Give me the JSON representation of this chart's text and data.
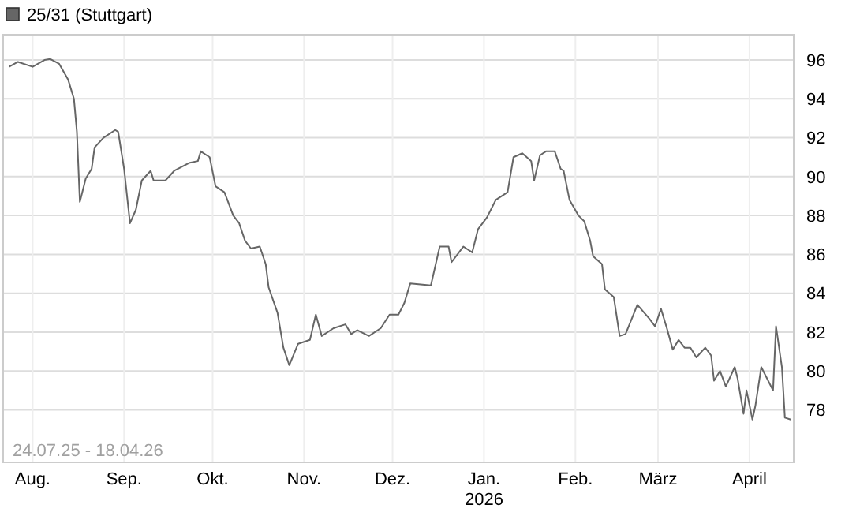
{
  "chart_data": {
    "type": "line",
    "x": [
      "2025-07-24",
      "2025-07-27",
      "2025-08-01",
      "2025-08-05",
      "2025-08-07",
      "2025-08-10",
      "2025-08-13",
      "2025-08-15",
      "2025-08-16",
      "2025-08-17",
      "2025-08-19",
      "2025-08-21",
      "2025-08-22",
      "2025-08-25",
      "2025-08-29",
      "2025-08-30",
      "2025-09-01",
      "2025-09-03",
      "2025-09-05",
      "2025-09-07",
      "2025-09-10",
      "2025-09-11",
      "2025-09-15",
      "2025-09-18",
      "2025-09-23",
      "2025-09-26",
      "2025-09-27",
      "2025-09-30",
      "2025-10-02",
      "2025-10-05",
      "2025-10-08",
      "2025-10-10",
      "2025-10-12",
      "2025-10-14",
      "2025-10-17",
      "2025-10-19",
      "2025-10-20",
      "2025-10-23",
      "2025-10-25",
      "2025-10-27",
      "2025-10-30",
      "2025-11-03",
      "2025-11-05",
      "2025-11-07",
      "2025-11-11",
      "2025-11-15",
      "2025-11-17",
      "2025-11-19",
      "2025-11-23",
      "2025-11-27",
      "2025-11-30",
      "2025-12-03",
      "2025-12-05",
      "2025-12-07",
      "2025-12-14",
      "2025-12-17",
      "2025-12-20",
      "2025-12-21",
      "2025-12-25",
      "2025-12-28",
      "2025-12-30",
      "2026-01-02",
      "2026-01-05",
      "2026-01-09",
      "2026-01-11",
      "2026-01-14",
      "2026-01-17",
      "2026-01-18",
      "2026-01-20",
      "2026-01-22",
      "2026-01-25",
      "2026-01-27",
      "2026-01-28",
      "2026-01-30",
      "2026-02-02",
      "2026-02-04",
      "2026-02-06",
      "2026-02-07",
      "2026-02-10",
      "2026-02-11",
      "2026-02-14",
      "2026-02-16",
      "2026-02-18",
      "2026-02-22",
      "2026-02-26",
      "2026-02-28",
      "2026-03-02",
      "2026-03-04",
      "2026-03-06",
      "2026-03-08",
      "2026-03-10",
      "2026-03-12",
      "2026-03-14",
      "2026-03-17",
      "2026-03-19",
      "2026-03-20",
      "2026-03-22",
      "2026-03-24",
      "2026-03-27",
      "2026-03-28",
      "2026-03-30",
      "2026-03-31",
      "2026-04-02",
      "2026-04-03",
      "2026-04-05",
      "2026-04-07",
      "2026-04-09",
      "2026-04-10",
      "2026-04-12",
      "2026-04-13",
      "2026-04-15"
    ],
    "series": [
      {
        "name": "25/31 (Stuttgart)",
        "color": "#666666",
        "values": [
          95.65,
          95.9,
          95.65,
          96.0,
          96.05,
          95.8,
          95.0,
          94.0,
          92.3,
          88.7,
          89.9,
          90.4,
          91.5,
          92.0,
          92.4,
          92.3,
          90.4,
          87.6,
          88.3,
          89.8,
          90.3,
          89.8,
          89.8,
          90.3,
          90.7,
          90.8,
          91.3,
          91.0,
          89.5,
          89.2,
          88.0,
          87.6,
          86.7,
          86.3,
          86.4,
          85.5,
          84.3,
          83.0,
          81.2,
          80.3,
          81.4,
          81.6,
          82.9,
          81.8,
          82.2,
          82.4,
          81.9,
          82.1,
          81.8,
          82.2,
          82.9,
          82.9,
          83.5,
          84.5,
          84.4,
          86.4,
          86.4,
          85.6,
          86.4,
          86.1,
          87.3,
          87.9,
          88.8,
          89.2,
          91.0,
          91.2,
          90.8,
          89.8,
          91.1,
          91.3,
          91.3,
          90.4,
          90.3,
          88.8,
          88.0,
          87.7,
          86.7,
          85.9,
          85.5,
          84.2,
          83.8,
          81.8,
          81.9,
          83.4,
          82.7,
          82.3,
          83.2,
          82.2,
          81.1,
          81.6,
          81.2,
          81.2,
          80.7,
          81.2,
          80.8,
          79.5,
          80.0,
          79.2,
          80.2,
          79.6,
          77.8,
          79.0,
          77.5,
          78.2,
          80.2,
          79.6,
          79.0,
          82.3,
          80.2,
          77.6,
          77.5
        ]
      }
    ],
    "xlim": [
      "2025-07-22",
      "2026-04-16"
    ],
    "xticks": [
      {
        "value": "2025-08-01",
        "label": "Aug."
      },
      {
        "value": "2025-09-01",
        "label": "Sep."
      },
      {
        "value": "2025-10-01",
        "label": "Okt."
      },
      {
        "value": "2025-11-01",
        "label": "Nov."
      },
      {
        "value": "2025-12-01",
        "label": "Dez."
      },
      {
        "value": "2026-01-01",
        "label": "Jan.\n2026"
      },
      {
        "value": "2026-02-01",
        "label": "Feb."
      },
      {
        "value": "2026-03-01",
        "label": "März"
      },
      {
        "value": "2026-04-01",
        "label": "April"
      }
    ],
    "ylim": [
      75.3,
      97.3
    ],
    "yticks": [
      78,
      80,
      82,
      84,
      86,
      88,
      90,
      92,
      94,
      96
    ],
    "grid": true,
    "legend": "top left",
    "annotations": [
      "24.07.25 - 18.04.26"
    ]
  }
}
